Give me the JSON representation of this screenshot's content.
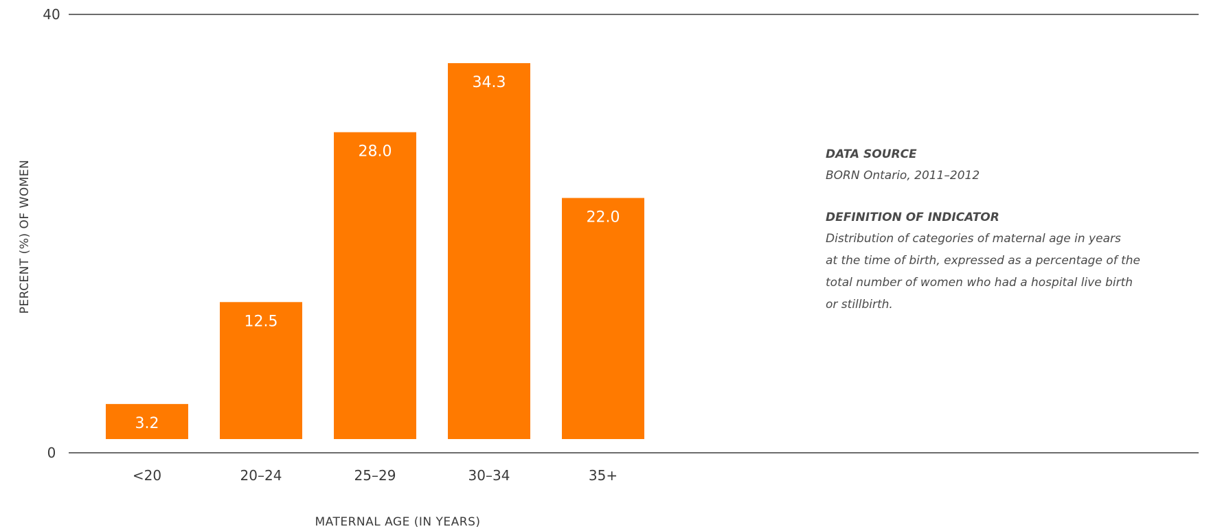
{
  "chart_data": {
    "type": "bar",
    "categories": [
      "<20",
      "20–24",
      "25–29",
      "30–34",
      "35+"
    ],
    "values": [
      3.2,
      12.5,
      28.0,
      34.3,
      22.0
    ],
    "value_labels": [
      "3.2",
      "12.5",
      "28.0",
      "34.3",
      "22.0"
    ],
    "ylim": [
      0,
      40
    ],
    "y_ticks": [
      0,
      40
    ],
    "xlabel": "MATERNAL AGE (IN YEARS)",
    "ylabel": "PERCENT (%) OF WOMEN",
    "grid": false,
    "bar_color": "#FF7A00",
    "data_labels": "inside-top"
  },
  "info": {
    "data_source_heading": "DATA SOURCE",
    "data_source_text": "BORN Ontario, 2011–2012",
    "definition_heading": "DEFINITION OF INDICATOR",
    "definition_lines": [
      "Distribution of categories of maternal age in years",
      "at the time of birth, expressed as a percentage of the",
      "total number of women who had a hospital live birth",
      "or stillbirth."
    ]
  }
}
